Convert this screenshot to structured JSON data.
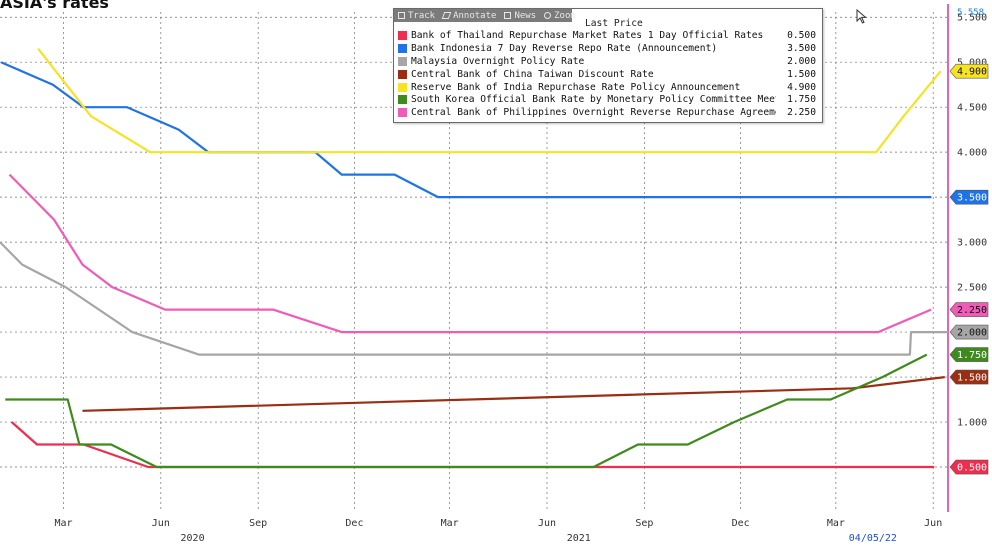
{
  "title": "ASIA's rates",
  "toolbar": {
    "items": [
      {
        "label": "Track",
        "icon": "track-icon"
      },
      {
        "label": "Annotate",
        "icon": "annotate-icon"
      },
      {
        "label": "News",
        "icon": "news-icon"
      },
      {
        "label": "Zoom",
        "icon": "zoom-icon"
      }
    ]
  },
  "legend": {
    "header": "Last Price",
    "placement": "top-center"
  },
  "chart_data": {
    "type": "line",
    "title": "",
    "xlabel": "",
    "ylabel": "",
    "x_range": [
      "2020-01-01",
      "2022-06-15"
    ],
    "ylim": [
      0.0,
      5.558
    ],
    "y_top_label": "5.558",
    "y_ticks": [
      "0.500",
      "1.000",
      "1.500",
      "2.000",
      "2.500",
      "3.000",
      "3.500",
      "4.000",
      "4.500",
      "5.000",
      "5.500"
    ],
    "y_tick_values": [
      0.5,
      1.0,
      1.5,
      2.0,
      2.5,
      3.0,
      3.5,
      4.0,
      4.5,
      5.0,
      5.5
    ],
    "x_ticks": [
      {
        "label": "Mar",
        "date": "2020-03-01"
      },
      {
        "label": "Jun",
        "date": "2020-06-01"
      },
      {
        "label": "Sep",
        "date": "2020-09-01"
      },
      {
        "label": "Dec",
        "date": "2020-12-01"
      },
      {
        "label": "Mar",
        "date": "2021-03-01"
      },
      {
        "label": "Jun",
        "date": "2021-06-01"
      },
      {
        "label": "Sep",
        "date": "2021-09-01"
      },
      {
        "label": "Dec",
        "date": "2021-12-01"
      },
      {
        "label": "Mar",
        "date": "2022-03-01"
      },
      {
        "label": "Jun",
        "date": "2022-06-01"
      }
    ],
    "year_labels": [
      {
        "label": "2020",
        "date": "2020-07-01"
      },
      {
        "label": "2021",
        "date": "2021-07-01"
      }
    ],
    "date_label": {
      "label": "04/05/22",
      "date": "2022-04-05"
    },
    "grid": true,
    "series": [
      {
        "name": "Bank of Thailand Repurchase Market Rates 1 Day Official Rates",
        "last": "0.500",
        "color": "#ef2d4f",
        "tag_text_color": "#ffffff",
        "points": [
          [
            "2020-01-12",
            1.0
          ],
          [
            "2020-02-05",
            0.75
          ],
          [
            "2020-03-20",
            0.75
          ],
          [
            "2020-05-20",
            0.5
          ],
          [
            "2022-06-02",
            0.5
          ]
        ]
      },
      {
        "name": "Bank Indonesia 7 Day Reverse Repo Rate (Announcement)",
        "last": "3.500",
        "color": "#1e73e8",
        "tag_text_color": "#ffffff",
        "points": [
          [
            "2020-01-02",
            5.0
          ],
          [
            "2020-02-20",
            4.75
          ],
          [
            "2020-03-20",
            4.5
          ],
          [
            "2020-04-30",
            4.5
          ],
          [
            "2020-06-18",
            4.25
          ],
          [
            "2020-07-16",
            4.0
          ],
          [
            "2020-10-25",
            4.0
          ],
          [
            "2020-11-19",
            3.75
          ],
          [
            "2021-01-08",
            3.75
          ],
          [
            "2021-02-18",
            3.5
          ],
          [
            "2022-05-30",
            3.5
          ]
        ]
      },
      {
        "name": "Malaysia Overnight Policy Rate",
        "last": "2.000",
        "color": "#a6a6a6",
        "tag_text_color": "#111111",
        "points": [
          [
            "2020-01-01",
            3.0
          ],
          [
            "2020-01-22",
            2.75
          ],
          [
            "2020-03-03",
            2.5
          ],
          [
            "2020-05-05",
            2.0
          ],
          [
            "2020-07-07",
            1.75
          ],
          [
            "2022-05-10",
            1.75
          ],
          [
            "2022-05-11",
            2.0
          ],
          [
            "2022-06-15",
            2.0
          ]
        ]
      },
      {
        "name": "Central Bank of China Taiwan Discount Rate",
        "last": "1.500",
        "color": "#9a2d12",
        "tag_text_color": "#ffffff",
        "points": [
          [
            "2020-03-19",
            1.125
          ],
          [
            "2022-03-17",
            1.375
          ],
          [
            "2022-06-12",
            1.5
          ]
        ]
      },
      {
        "name": "Reserve Bank of India Repurchase Rate Policy Announcement",
        "last": "4.900",
        "color": "#f6e325",
        "tag_text_color": "#111111",
        "points": [
          [
            "2020-02-06",
            5.15
          ],
          [
            "2020-03-27",
            4.4
          ],
          [
            "2020-05-22",
            4.0
          ],
          [
            "2022-04-08",
            4.0
          ],
          [
            "2022-05-04",
            4.4
          ],
          [
            "2022-06-08",
            4.9
          ]
        ]
      },
      {
        "name": "South Korea Official Bank Rate by Monetary Policy Committee Meeting",
        "last": "1.750",
        "color": "#3f8a1d",
        "tag_text_color": "#ffffff",
        "points": [
          [
            "2020-01-06",
            1.25
          ],
          [
            "2020-03-05",
            1.25
          ],
          [
            "2020-03-16",
            0.75
          ],
          [
            "2020-04-15",
            0.75
          ],
          [
            "2020-05-28",
            0.5
          ],
          [
            "2021-07-15",
            0.5
          ],
          [
            "2021-08-26",
            0.75
          ],
          [
            "2021-10-12",
            0.75
          ],
          [
            "2021-11-25",
            1.0
          ],
          [
            "2022-01-14",
            1.25
          ],
          [
            "2022-02-24",
            1.25
          ],
          [
            "2022-04-14",
            1.5
          ],
          [
            "2022-05-26",
            1.75
          ]
        ]
      },
      {
        "name": "Central Bank of Philippines Overnight Reverse Repurchase Agreement RRP Rate",
        "last": "2.250",
        "color": "#ef5cb8",
        "tag_text_color": "#111111",
        "points": [
          [
            "2020-01-10",
            3.75
          ],
          [
            "2020-02-21",
            3.25
          ],
          [
            "2020-03-19",
            2.75
          ],
          [
            "2020-04-16",
            2.5
          ],
          [
            "2020-06-05",
            2.25
          ],
          [
            "2020-09-15",
            2.25
          ],
          [
            "2020-11-19",
            2.0
          ],
          [
            "2022-04-10",
            2.0
          ],
          [
            "2022-05-30",
            2.25
          ]
        ]
      }
    ]
  }
}
